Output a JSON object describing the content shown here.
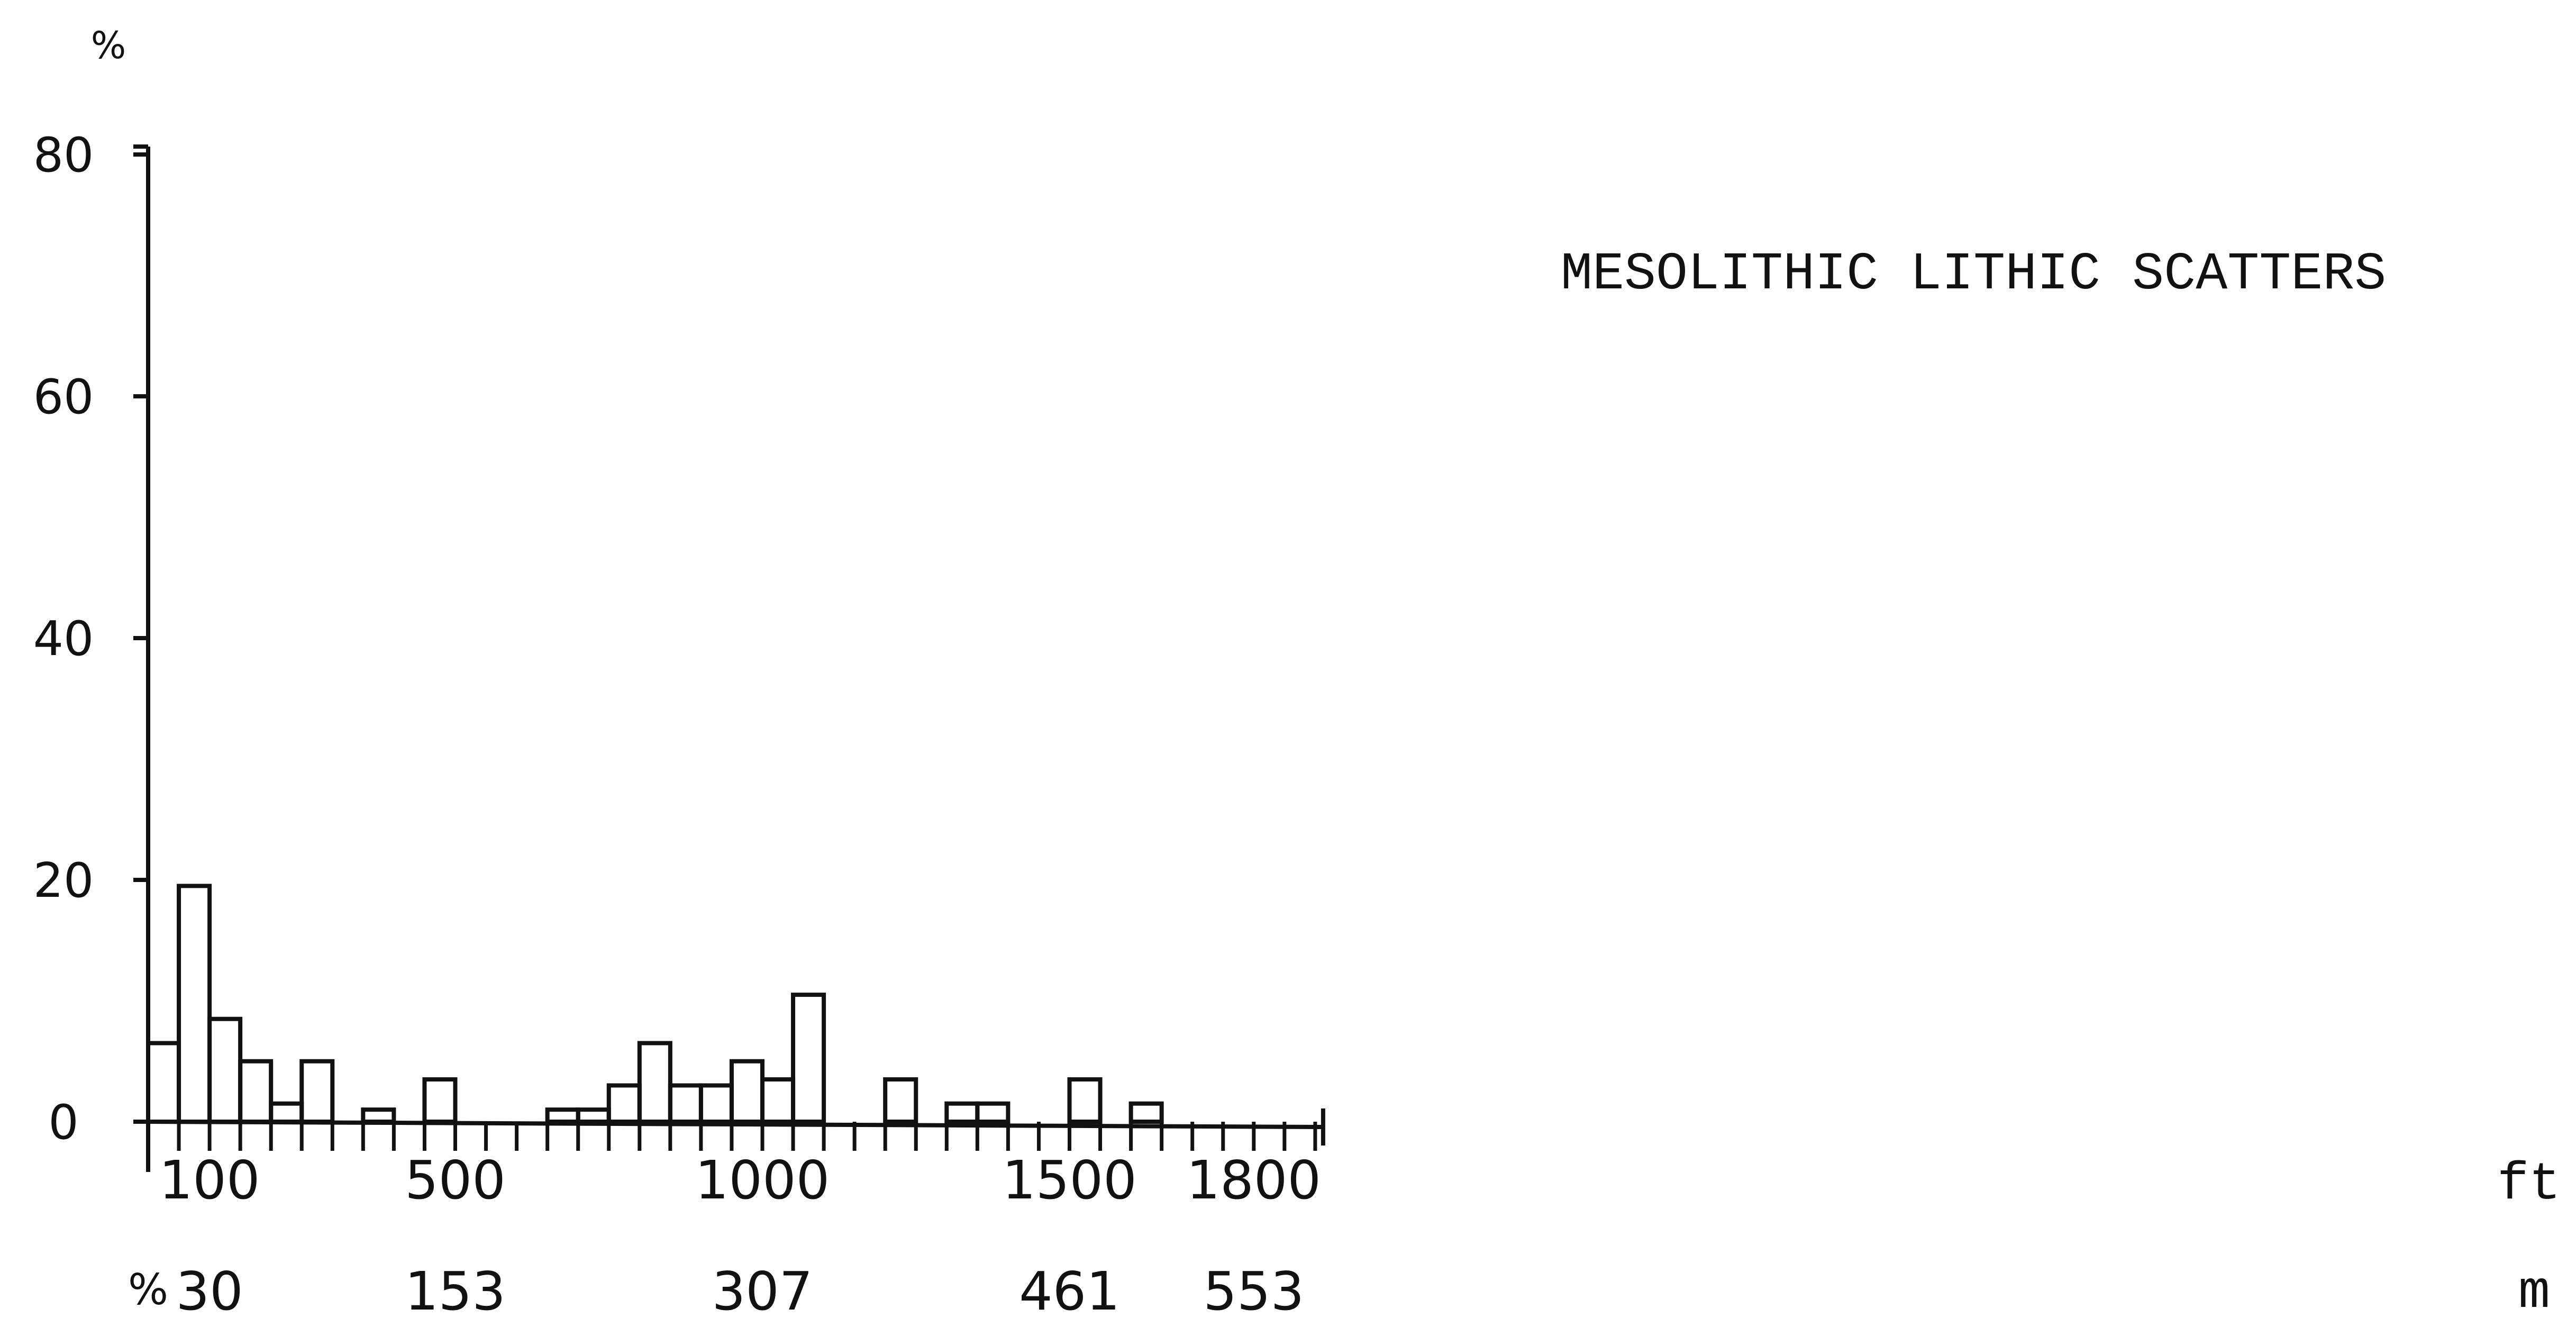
{
  "chart_data": {
    "type": "bar",
    "title": "MESOLITHIC LITHIC SCATTERS",
    "ylabel": "%",
    "ylim": [
      0,
      80
    ],
    "y_ticks": [
      0,
      20,
      40,
      60,
      80
    ],
    "y_tick_labels": [
      "0",
      "20",
      "40",
      "60",
      "80"
    ],
    "xlim": [
      0,
      1900
    ],
    "x_ticks_ft": [
      100,
      500,
      1000,
      1500,
      1800
    ],
    "x_tick_labels_ft": [
      "100",
      "500",
      "1000",
      "1500",
      "1800"
    ],
    "x_unit_ft": "ft",
    "x_ticks_m": [
      100,
      500,
      1000,
      1500,
      1800
    ],
    "x_tick_labels_m": [
      "30",
      "153",
      "307",
      "461",
      "553"
    ],
    "x_unit_m": "m",
    "secondary_axis_symbol": "%",
    "bin_width": 50,
    "bin_starts": [
      0,
      50,
      100,
      150,
      200,
      250,
      350,
      450,
      650,
      700,
      750,
      800,
      850,
      900,
      950,
      1000,
      1050,
      1200,
      1300,
      1350,
      1500,
      1600
    ],
    "values": [
      6.5,
      19.5,
      8.5,
      5,
      1.5,
      5,
      1,
      3.5,
      1,
      1,
      3,
      6.5,
      3,
      3,
      5,
      3.5,
      10.5,
      3.5,
      1.5,
      1.5,
      3.5,
      1.5
    ],
    "grid": false,
    "legend": "none"
  }
}
